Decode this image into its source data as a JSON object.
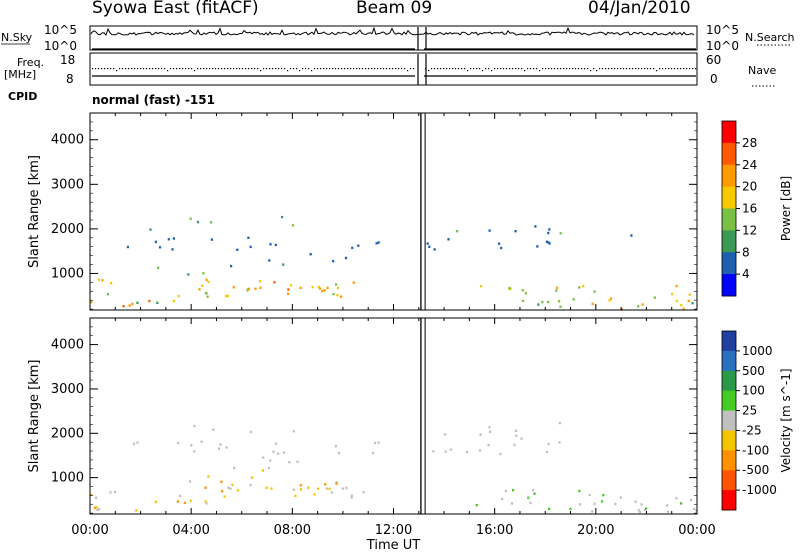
{
  "header": {
    "title": "Syowa East (fitACF)",
    "beam": "Beam 09",
    "date": "04/Jan/2010"
  },
  "strip": {
    "nsky_label": "N.Sky",
    "nsearch_label": "N.Search",
    "freq_label_1": "Freq.",
    "freq_label_2": "[MHz]",
    "cpid_label": "CPID",
    "nave_label": "Nave",
    "noise_ticks_left": [
      "10^5",
      "10^0"
    ],
    "noise_ticks_right": [
      "10^5",
      "10^0"
    ],
    "freq_ticks": [
      "18",
      "8"
    ],
    "nave_ticks": [
      "60",
      "0"
    ],
    "cpid_text": "normal (fast) -151"
  },
  "chart_data": [
    {
      "type": "heatmap",
      "title": "",
      "xlabel": "",
      "ylabel": "Slant Range [km]",
      "xlim": [
        "00:00",
        "24:00"
      ],
      "ylim": [
        180,
        4600
      ],
      "y_ticks": [
        "1000",
        "2000",
        "3000",
        "4000"
      ],
      "colorbar": {
        "label": "Power [dB]",
        "ticks": [
          "28",
          "24",
          "20",
          "16",
          "12",
          "8",
          "4"
        ],
        "colors": [
          "#ff0000",
          "#ff5a00",
          "#ff9b00",
          "#f5c800",
          "#7ac044",
          "#3a9a55",
          "#1d5fb0",
          "#0000ff"
        ]
      },
      "data_gap": [
        "13:05",
        "13:15"
      ]
    },
    {
      "type": "heatmap",
      "title": "",
      "xlabel": "Time UT",
      "ylabel": "Slant Range [km]",
      "xlim": [
        "00:00",
        "24:00"
      ],
      "ylim": [
        180,
        4600
      ],
      "x_ticks": [
        "00:00",
        "04:00",
        "08:00",
        "12:00",
        "16:00",
        "20:00",
        "00:00"
      ],
      "y_ticks": [
        "1000",
        "2000",
        "3000",
        "4000"
      ],
      "colorbar": {
        "label": "Velocity [m s^-1]",
        "ticks": [
          "1000",
          "500",
          "100",
          "25",
          "-25",
          "-100",
          "-500",
          "-1000"
        ],
        "colors": [
          "#2040a0",
          "#2a70c0",
          "#2a9a4a",
          "#44cc22",
          "#c0c0c0",
          "#f5c400",
          "#ff9000",
          "#ff5500",
          "#ff0000"
        ]
      },
      "data_gap": [
        "13:05",
        "13:15"
      ]
    }
  ]
}
